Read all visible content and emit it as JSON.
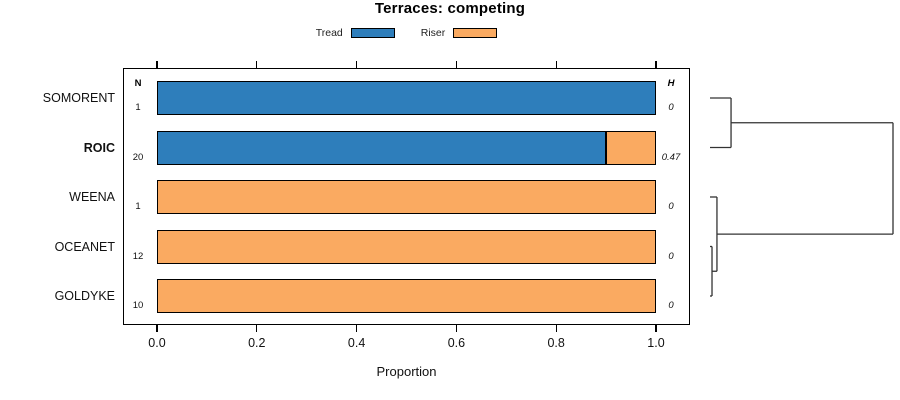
{
  "chart_data": {
    "type": "bar",
    "orientation": "horizontal",
    "stacked": true,
    "title": "Terraces: competing",
    "xlabel": "Proportion",
    "xlim": [
      0,
      1
    ],
    "xticks": [
      "0.0",
      "0.2",
      "0.4",
      "0.6",
      "0.8",
      "1.0"
    ],
    "grid": false,
    "legend_position": "top-center",
    "legend": [
      {
        "label": "Tread",
        "color": "#2E7EBB"
      },
      {
        "label": "Riser",
        "color": "#FAAA61"
      }
    ],
    "columns": {
      "n_header": "N",
      "h_header": "H"
    },
    "categories": [
      "SOMORENT",
      "ROIC",
      "WEENA",
      "OCEANET",
      "GOLDYKE"
    ],
    "series": [
      {
        "name": "Tread",
        "color": "#2E7EBB",
        "values": [
          1.0,
          0.9,
          0.0,
          0.0,
          0.0
        ]
      },
      {
        "name": "Riser",
        "color": "#FAAA61",
        "values": [
          0.0,
          0.1,
          1.0,
          1.0,
          1.0
        ]
      }
    ],
    "rows": [
      {
        "label": "SOMORENT",
        "bold": false,
        "n": "1",
        "h": "0",
        "tread": 1.0,
        "riser": 0.0
      },
      {
        "label": "ROIC",
        "bold": true,
        "n": "20",
        "h": "0.47",
        "tread": 0.9,
        "riser": 0.1
      },
      {
        "label": "WEENA",
        "bold": false,
        "n": "1",
        "h": "0",
        "tread": 0.0,
        "riser": 1.0
      },
      {
        "label": "OCEANET",
        "bold": false,
        "n": "12",
        "h": "0",
        "tread": 0.0,
        "riser": 1.0
      },
      {
        "label": "GOLDYKE",
        "bold": false,
        "n": "10",
        "h": "0",
        "tread": 0.0,
        "riser": 1.0
      }
    ],
    "dendrogram": {
      "axis": "horizontal-right",
      "tree": {
        "height": 1.0,
        "children": [
          {
            "height": 0.115,
            "children": [
              {
                "leaf": "SOMORENT"
              },
              {
                "leaf": "ROIC"
              }
            ]
          },
          {
            "height": 0.038,
            "children": [
              {
                "leaf": "WEENA"
              },
              {
                "height": 0.011,
                "children": [
                  {
                    "leaf": "OCEANET"
                  },
                  {
                    "leaf": "GOLDYKE"
                  }
                ]
              }
            ]
          }
        ]
      }
    },
    "colors": {
      "bar_border": "#000000",
      "dendro_line": "#333333"
    }
  }
}
